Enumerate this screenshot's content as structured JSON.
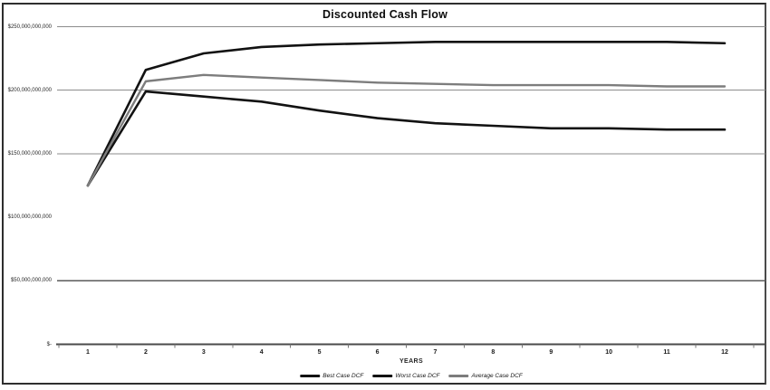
{
  "title": "Discounted Cash Flow",
  "colors": {
    "best_line": "#121212",
    "worst_line": "#121212",
    "average_line": "#7d7d7d",
    "gridline": "#8c8c8c",
    "axis": "#4a4a4a",
    "frame_border": "#2e2e2e",
    "background": "#ffffff"
  },
  "chart_data": {
    "type": "line",
    "title": "Discounted Cash Flow",
    "xlabel": "YEARS",
    "ylabel": "",
    "x": [
      1,
      2,
      3,
      4,
      5,
      6,
      7,
      8,
      9,
      10,
      11,
      12
    ],
    "ylim": [
      0,
      250000000000
    ],
    "grid": "horizontal",
    "legend_position": "bottom",
    "y_ticks": [
      {
        "label": "$250,000,000,000",
        "value": 250000000000
      },
      {
        "label": "$200,000,000,000",
        "value": 200000000000
      },
      {
        "label": "$150,000,000,000",
        "value": 150000000000
      },
      {
        "label": "$100,000,000,000",
        "value": 100000000000
      },
      {
        "label": "$50,000,000,000",
        "value": 50000000000
      },
      {
        "label": "$-",
        "value": 0
      }
    ],
    "gridline_values": [
      250000000000,
      200000000000,
      150000000000,
      50000000000
    ],
    "series": [
      {
        "name": "Best Case DCF",
        "color": "#121212",
        "stroke_width": 2.6,
        "values": [
          125000000000,
          216000000000,
          229000000000,
          234000000000,
          236000000000,
          237000000000,
          238000000000,
          238000000000,
          238000000000,
          238000000000,
          238000000000,
          237000000000
        ]
      },
      {
        "name": "Worst Case DCF",
        "color": "#121212",
        "stroke_width": 2.6,
        "values": [
          125000000000,
          199000000000,
          195000000000,
          191000000000,
          184000000000,
          178000000000,
          174000000000,
          172000000000,
          170000000000,
          170000000000,
          169000000000,
          169000000000
        ]
      },
      {
        "name": "Average Case DCF",
        "color": "#7d7d7d",
        "stroke_width": 2.4,
        "values": [
          125000000000,
          207000000000,
          212000000000,
          210000000000,
          208000000000,
          206000000000,
          205000000000,
          204000000000,
          204000000000,
          204000000000,
          203000000000,
          203000000000
        ]
      }
    ]
  }
}
